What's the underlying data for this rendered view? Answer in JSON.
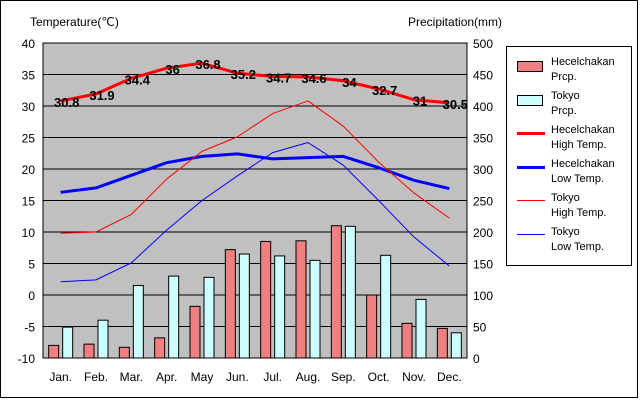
{
  "chart_data": {
    "type": "bar",
    "title": "",
    "left_axis_label": "Temperature(℃)",
    "right_axis_label": "Precipitation(mm)",
    "categories": [
      "Jan.",
      "Feb.",
      "Mar.",
      "Apr.",
      "May",
      "Jun.",
      "Jul.",
      "Aug.",
      "Sep.",
      "Oct.",
      "Nov.",
      "Dec."
    ],
    "ylim_left": [
      -10,
      40
    ],
    "yticks_left": [
      "40",
      "35",
      "30",
      "25",
      "20",
      "15",
      "10",
      "5",
      "0",
      "-5",
      "-10"
    ],
    "ylim_right": [
      0,
      500
    ],
    "yticks_right": [
      "500",
      "450",
      "400",
      "350",
      "300",
      "250",
      "200",
      "150",
      "100",
      "50",
      "0"
    ],
    "grid": true,
    "legend_position": "right",
    "bar_series": [
      {
        "name": "Hecelchakan\nPrcp.",
        "color": "#f08080",
        "values": [
          20,
          22,
          17,
          32,
          82,
          172,
          185,
          186,
          210,
          100,
          55,
          47
        ]
      },
      {
        "name": "Tokyo\nPrcp.",
        "color": "#ccffff",
        "values": [
          49,
          60,
          115,
          130,
          128,
          165,
          162,
          155,
          209,
          163,
          93,
          40
        ]
      }
    ],
    "line_series": [
      {
        "name": "Hecelchakan\nHigh Temp.",
        "color": "#ff0000",
        "width": 3,
        "values": [
          30.8,
          31.9,
          34.4,
          36,
          36.8,
          35.2,
          34.7,
          34.6,
          34,
          32.7,
          31,
          30.5
        ],
        "labels": [
          "30.8",
          "31.9",
          "34.4",
          "36",
          "36.8",
          "35.2",
          "34.7",
          "34.6",
          "34",
          "32.7",
          "31",
          "30.5"
        ]
      },
      {
        "name": "Hecelchakan\nLow Temp.",
        "color": "#0000ff",
        "width": 3,
        "values": [
          16.3,
          17,
          19,
          21,
          22,
          22.4,
          21.6,
          21.8,
          22,
          20.2,
          18.2,
          16.9
        ]
      },
      {
        "name": "Tokyo\nHigh Temp.",
        "color": "#ff0000",
        "width": 1,
        "values": [
          9.8,
          10,
          12.8,
          18.4,
          22.8,
          25.1,
          28.8,
          30.8,
          26.8,
          21.1,
          16.2,
          12.2
        ]
      },
      {
        "name": "Tokyo\nLow Temp.",
        "color": "#0000ff",
        "width": 1,
        "values": [
          2.1,
          2.4,
          5.1,
          10.3,
          15,
          18.9,
          22.6,
          24.2,
          20.6,
          15,
          9.2,
          4.6
        ]
      }
    ]
  }
}
